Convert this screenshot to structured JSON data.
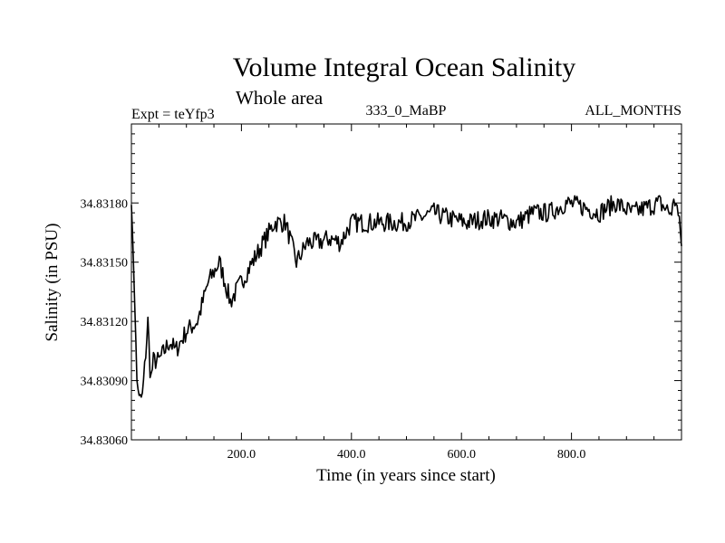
{
  "chart_data": {
    "type": "line",
    "title": "Volume Integral Ocean Salinity",
    "subtitle": "Whole area",
    "experiment": "Expt = teYfp3",
    "run_id": "333_0_MaBP",
    "months": "ALL_MONTHS",
    "xlabel": "Time (in years since start)",
    "ylabel": "Salinity (in PSU)",
    "xlim": [
      0,
      1000
    ],
    "ylim": [
      34.8306,
      34.8322
    ],
    "x_ticks": [
      200,
      400,
      600,
      800
    ],
    "x_tick_labels": [
      "200.0",
      "400.0",
      "600.0",
      "800.0"
    ],
    "y_ticks": [
      34.8306,
      34.8309,
      34.8312,
      34.8315,
      34.8318
    ],
    "y_tick_labels": [
      "34.83060",
      "34.83090",
      "34.83120",
      "34.83150",
      "34.83180"
    ],
    "series": [
      {
        "name": "Salinity",
        "x": [
          0,
          5,
          10,
          15,
          20,
          25,
          30,
          35,
          40,
          50,
          60,
          70,
          80,
          90,
          100,
          120,
          140,
          160,
          180,
          200,
          220,
          240,
          260,
          280,
          300,
          320,
          340,
          360,
          380,
          400,
          430,
          460,
          490,
          520,
          550,
          580,
          610,
          640,
          670,
          700,
          730,
          760,
          790,
          820,
          850,
          880,
          910,
          940,
          960,
          980,
          990,
          1000
        ],
        "values": [
          34.8318,
          34.8314,
          34.8309,
          34.8308,
          34.83082,
          34.831,
          34.8312,
          34.8309,
          34.831,
          34.831,
          34.83105,
          34.8311,
          34.83105,
          34.8311,
          34.83115,
          34.8312,
          34.8314,
          34.8315,
          34.8313,
          34.8314,
          34.8315,
          34.8316,
          34.8317,
          34.8317,
          34.8315,
          34.8316,
          34.8316,
          34.83162,
          34.8316,
          34.8317,
          34.8317,
          34.8317,
          34.8317,
          34.83172,
          34.83175,
          34.83172,
          34.8317,
          34.83172,
          34.83172,
          34.8317,
          34.83175,
          34.83175,
          34.8318,
          34.83178,
          34.83175,
          34.8318,
          34.83175,
          34.83178,
          34.8318,
          34.83175,
          34.83182,
          34.8316
        ]
      }
    ]
  }
}
